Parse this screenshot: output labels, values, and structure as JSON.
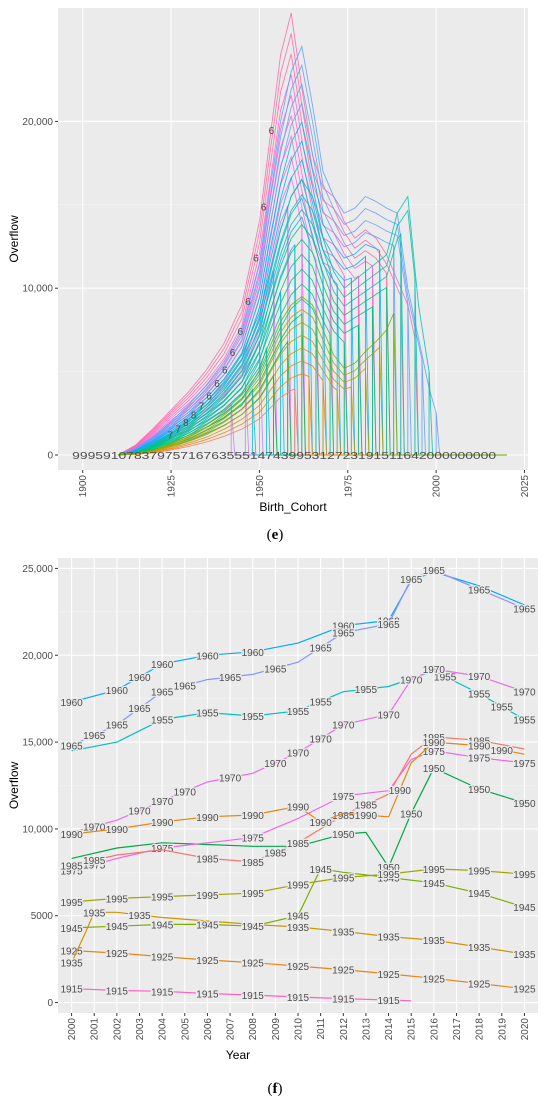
{
  "colors": {
    "panel_bg": "#ebebeb",
    "grid_major": "#ffffff",
    "grid_minor": "#f4f4f4",
    "series_e": [
      "#f8766d",
      "#e58700",
      "#c99800",
      "#a3a500",
      "#6bb100",
      "#00ba38",
      "#00bf7d",
      "#00c0af",
      "#00bcd8",
      "#00b0f6",
      "#619cff",
      "#b983ff",
      "#e76bf3",
      "#fd61d1",
      "#ff67a4"
    ]
  },
  "captions": {
    "e": "e",
    "f": "f"
  },
  "chart_data": [
    {
      "panel": "e",
      "type": "line",
      "title": "",
      "xlabel": "Birth_Cohort",
      "ylabel": "Overflow",
      "xlim": [
        1893,
        2026
      ],
      "ylim": [
        -900,
        26800
      ],
      "xticks": [
        1900,
        1925,
        1950,
        1975,
        2000,
        2025
      ],
      "yticks": [
        0,
        10000,
        20000
      ],
      "ytick_labels": [
        "0",
        "10,000",
        "20,000"
      ],
      "grid": true,
      "legend": "none",
      "zero_label_text": "9995910783797571676355514743995312723191511642000000000",
      "curve_counts": {
        "lead": 14,
        "peak": 14,
        "mid": 12,
        "tail": 8
      },
      "x_cohorts": [
        1910,
        1915,
        1920,
        1925,
        1930,
        1935,
        1940,
        1945,
        1950,
        1953,
        1956,
        1959,
        1962,
        1965,
        1968,
        1971,
        1974,
        1977,
        1980,
        1983,
        1986,
        1989,
        1992,
        1995,
        1998,
        2001,
        2005,
        2010,
        2015,
        2020
      ],
      "envelopes": {
        "lead": [
          0,
          600,
          1600,
          2700,
          3800,
          5100,
          6700,
          9000,
          14000,
          19000,
          24000,
          26500,
          22000,
          18000,
          16000,
          15500,
          14000,
          13000,
          13500,
          13000,
          12000,
          10500,
          9000,
          6000,
          3500,
          1500,
          700,
          500,
          300,
          0
        ],
        "peak": [
          0,
          400,
          1100,
          2000,
          3000,
          4200,
          5600,
          7500,
          11500,
          16000,
          20000,
          23000,
          24500,
          21000,
          17000,
          15500,
          14500,
          14800,
          15500,
          15200,
          14800,
          14500,
          10000,
          7000,
          4000,
          1800,
          800,
          500,
          300,
          0
        ],
        "mid": [
          0,
          200,
          700,
          1300,
          2100,
          3200,
          4400,
          6000,
          8500,
          11000,
          13500,
          15500,
          16500,
          15500,
          13000,
          11000,
          10000,
          10500,
          11000,
          11500,
          12000,
          14500,
          15500,
          9000,
          5000,
          2000,
          900,
          500,
          300,
          0
        ],
        "tail": [
          0,
          100,
          300,
          700,
          1200,
          1800,
          2600,
          3600,
          5000,
          6500,
          8000,
          9000,
          9500,
          9000,
          7500,
          6000,
          5200,
          5500,
          6200,
          6800,
          7500,
          9000,
          10500,
          9500,
          7000,
          3500,
          1200,
          600,
          300,
          0
        ]
      },
      "start_labels": [
        "7",
        "7",
        "8",
        "8",
        "7",
        "6",
        "6",
        "6",
        "6",
        "6",
        "6",
        "6",
        "6",
        "6"
      ]
    },
    {
      "panel": "f",
      "type": "line",
      "title": "",
      "xlabel": "Year",
      "ylabel": "Overflow",
      "xlim": [
        1999.4,
        2020.6
      ],
      "ylim": [
        -600,
        25600
      ],
      "xticks": [
        2000,
        2001,
        2002,
        2003,
        2004,
        2005,
        2006,
        2007,
        2008,
        2009,
        2010,
        2011,
        2012,
        2013,
        2014,
        2015,
        2016,
        2017,
        2018,
        2019,
        2020
      ],
      "yticks": [
        0,
        5000,
        10000,
        15000,
        20000,
        25000
      ],
      "ytick_labels": [
        "0",
        "5000",
        "10,000",
        "15,000",
        "20,000",
        "25,000"
      ],
      "grid": true,
      "legend": "none",
      "series": [
        {
          "name": "1915",
          "color": "#ff61c3",
          "x": [
            2000,
            2002,
            2004,
            2006,
            2008,
            2010,
            2012,
            2014,
            2015
          ],
          "y": [
            800,
            700,
            650,
            520,
            430,
            320,
            230,
            150,
            100
          ],
          "label_x": [
            2000,
            2002,
            2004,
            2006,
            2008,
            2010,
            2012,
            2014
          ]
        },
        {
          "name": "1925",
          "color": "#e68613",
          "x": [
            2000,
            2002,
            2004,
            2006,
            2008,
            2010,
            2012,
            2014,
            2016,
            2018,
            2020
          ],
          "y": [
            3000,
            2850,
            2650,
            2450,
            2300,
            2100,
            1900,
            1650,
            1400,
            1100,
            800
          ],
          "label_x": [
            2000,
            2002,
            2004,
            2006,
            2008,
            2010,
            2012,
            2014,
            2016,
            2018,
            2020
          ]
        },
        {
          "name": "1935",
          "color": "#cd9600",
          "x": [
            2000,
            2000.6,
            2001,
            2002,
            2004,
            2006,
            2008,
            2010,
            2012,
            2014,
            2016,
            2018,
            2020
          ],
          "y": [
            2300,
            4000,
            5200,
            5200,
            4900,
            4700,
            4500,
            4350,
            4100,
            3800,
            3600,
            3200,
            2800
          ],
          "label_x": [
            2000,
            2001,
            2003,
            2010,
            2012,
            2014,
            2016,
            2018,
            2020
          ]
        },
        {
          "name": "1945",
          "color": "#7cae00",
          "x": [
            2000,
            2002,
            2004,
            2006,
            2008,
            2010,
            2011,
            2012,
            2014,
            2016,
            2018,
            2020
          ],
          "y": [
            4300,
            4400,
            4500,
            4500,
            4400,
            5000,
            7700,
            7500,
            7200,
            6900,
            6300,
            5500
          ],
          "label_x": [
            2000,
            2002,
            2004,
            2006,
            2008,
            2010,
            2011,
            2014,
            2016,
            2018,
            2020
          ]
        },
        {
          "name": "1950",
          "color": "#00a849",
          "x": [
            2000,
            2002,
            2004,
            2006,
            2008,
            2010,
            2012,
            2013,
            2014,
            2015,
            2016,
            2018,
            2020
          ],
          "y": [
            8300,
            8900,
            9200,
            9100,
            9000,
            9000,
            9700,
            9800,
            7800,
            10900,
            13500,
            12300,
            11500
          ],
          "label_x": [
            2012,
            2014,
            2015,
            2016,
            2018,
            2020
          ]
        },
        {
          "name": "1955",
          "color": "#00bfc4",
          "x": [
            2000,
            2002,
            2004,
            2006,
            2008,
            2010,
            2012,
            2014,
            2016,
            2018,
            2020
          ],
          "y": [
            14500,
            15000,
            16300,
            16700,
            16500,
            16800,
            17900,
            18200,
            19100,
            17800,
            16300
          ],
          "label_x": [
            2004,
            2006,
            2008,
            2010,
            2011,
            2013,
            2016.5,
            2018,
            2019,
            2020
          ]
        },
        {
          "name": "1960",
          "color": "#00a9ff",
          "x": [
            2000,
            2002,
            2004,
            2006,
            2008,
            2010,
            2012,
            2014,
            2015,
            2016,
            2018,
            2020
          ],
          "y": [
            17300,
            18000,
            19500,
            20000,
            20200,
            20700,
            21700,
            22000,
            24300,
            24800,
            24000,
            22900
          ],
          "label_x": [
            2000,
            2002,
            2003,
            2004,
            2006,
            2008,
            2012,
            2014
          ]
        },
        {
          "name": "1965",
          "color": "#8494ff",
          "x": [
            2000,
            2002,
            2004,
            2006,
            2008,
            2010,
            2012,
            2014,
            2015,
            2016,
            2018,
            2020
          ],
          "y": [
            14800,
            16000,
            17900,
            18600,
            18900,
            19600,
            21300,
            21800,
            24400,
            24900,
            23800,
            22700
          ],
          "label_x": [
            2000,
            2001,
            2002,
            2003,
            2004,
            2005,
            2007,
            2009,
            2011,
            2012,
            2014,
            2015,
            2016,
            2018,
            2020
          ]
        },
        {
          "name": "1970",
          "color": "#ed68ed",
          "x": [
            2000,
            2002,
            2004,
            2006,
            2008,
            2010,
            2012,
            2014,
            2015,
            2016,
            2018,
            2020
          ],
          "y": [
            9800,
            10500,
            11600,
            12700,
            13200,
            14400,
            16000,
            16600,
            18600,
            19200,
            18800,
            17900
          ],
          "label_x": [
            2001,
            2003,
            2004,
            2005,
            2007,
            2009,
            2010,
            2011,
            2012,
            2014,
            2015,
            2016,
            2018,
            2020
          ]
        },
        {
          "name": "1975",
          "color": "#f564e3",
          "x": [
            2000,
            2002,
            2004,
            2006,
            2008,
            2010,
            2012,
            2014,
            2015,
            2016,
            2018,
            2020
          ],
          "y": [
            7600,
            8300,
            8900,
            9200,
            9500,
            10600,
            11900,
            12200,
            14000,
            14500,
            14100,
            13800
          ],
          "label_x": [
            2000,
            2001,
            2004,
            2008,
            2012,
            2016,
            2018,
            2020
          ]
        },
        {
          "name": "1985",
          "color": "#f8766d",
          "x": [
            2000,
            2002,
            2004,
            2006,
            2008,
            2010,
            2012,
            2014,
            2015,
            2016,
            2018,
            2020
          ],
          "y": [
            7900,
            8500,
            8800,
            8300,
            8100,
            9200,
            10800,
            12000,
            14300,
            15300,
            15100,
            14600
          ],
          "label_x": [
            2000,
            2001,
            2006,
            2008,
            2009,
            2010,
            2012,
            2013,
            2016,
            2018
          ]
        },
        {
          "name": "1990",
          "color": "#e68613",
          "x": [
            2000,
            2002,
            2004,
            2006,
            2008,
            2010,
            2011,
            2012,
            2014,
            2015,
            2016,
            2018,
            2020
          ],
          "y": [
            9700,
            10000,
            10400,
            10700,
            10800,
            11300,
            10400,
            10900,
            10700,
            13800,
            15000,
            14800,
            14300
          ],
          "label_x": [
            2000,
            2002,
            2004,
            2006,
            2008,
            2010,
            2011,
            2013,
            2014.5,
            2016,
            2018,
            2019
          ]
        },
        {
          "name": "1995",
          "color": "#a3a500",
          "x": [
            2000,
            2002,
            2004,
            2006,
            2008,
            2010,
            2012,
            2014,
            2016,
            2018,
            2020
          ],
          "y": [
            5800,
            6000,
            6100,
            6200,
            6300,
            6800,
            7200,
            7400,
            7700,
            7600,
            7400
          ],
          "label_x": [
            2000,
            2002,
            2004,
            2006,
            2008,
            2010,
            2012,
            2014,
            2016,
            2018,
            2020
          ]
        }
      ]
    }
  ]
}
